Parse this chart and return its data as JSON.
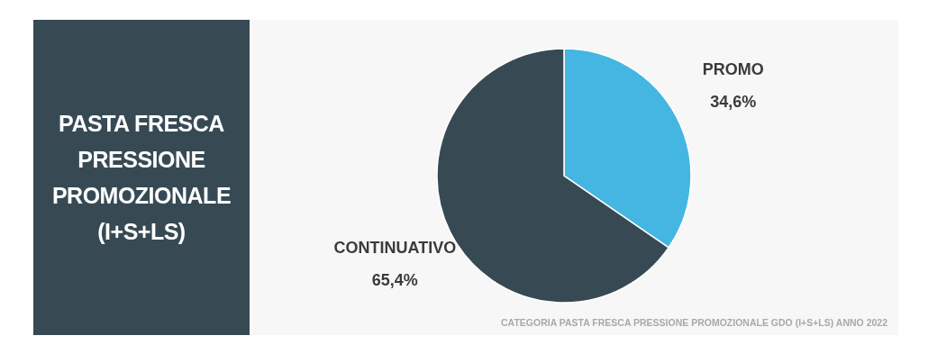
{
  "chart_data": {
    "type": "pie",
    "title": "PASTA FRESCA PRESSIONE PROMOZIONALE (I+S+LS)",
    "categories": [
      "PROMO",
      "CONTINUATIVO"
    ],
    "values": [
      34.6,
      65.4
    ],
    "value_labels": [
      "34,6%",
      "65,4%"
    ],
    "colors": [
      "#45b6e1",
      "#374a54"
    ],
    "annotations": [
      "CATEGORIA PASTA FRESCA PRESSIONE PROMOZIONALE GDO (I+S+LS) ANNO 2022"
    ]
  }
}
